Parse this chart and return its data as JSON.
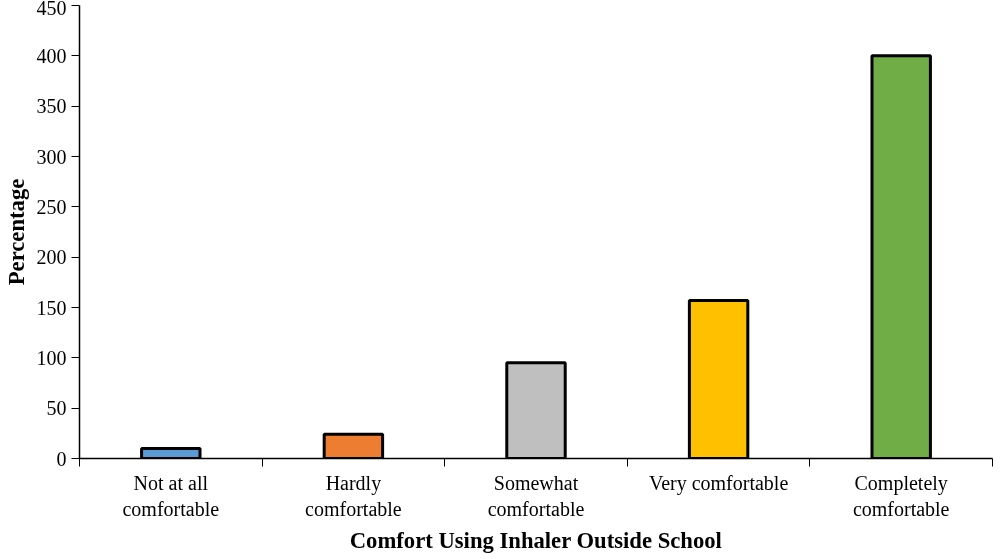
{
  "chart_data": {
    "type": "bar",
    "xlabel": "Comfort Using Inhaler Outside School",
    "ylabel": "Percentage",
    "categories": [
      "Not at all comfortable",
      "Hardly comfortable",
      "Somewhat comfortable",
      "Very comfortable",
      "Completely comfortable"
    ],
    "values": [
      10,
      24,
      95,
      157,
      400
    ],
    "colors": [
      "#5b9bd5",
      "#ed7d31",
      "#bfbfbf",
      "#ffc000",
      "#70ad47"
    ],
    "ylim": [
      0,
      450
    ],
    "yticks": [
      0,
      50,
      100,
      150,
      200,
      250,
      300,
      350,
      400,
      450
    ],
    "grid": false
  }
}
